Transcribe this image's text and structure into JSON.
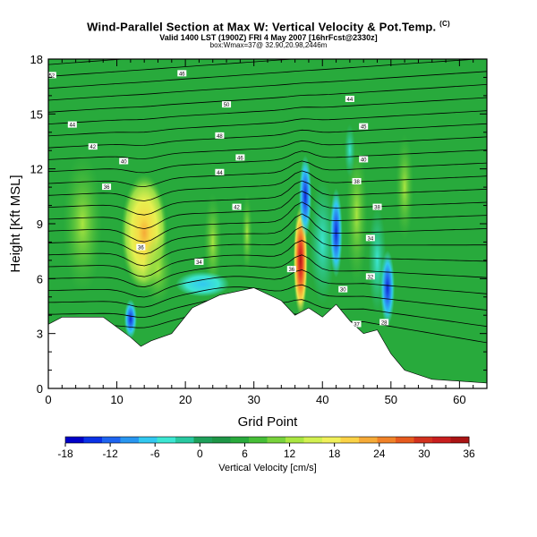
{
  "titles": {
    "main": "Wind-Parallel Section at Max W: Vertical Velocity & Pot.Temp.",
    "main_mark": "(C)",
    "sub1": "Valid 1400 LST (1900Z) FRI 4 May 2007 [16hrFcst@2330z]",
    "sub2": "box:Wmax=37@ 32.90,20.98,2446m"
  },
  "chart_data": {
    "type": "heatmap",
    "xlabel": "Grid Point",
    "ylabel": "Height [Kft MSL]",
    "xlim": [
      0,
      64
    ],
    "ylim": [
      0,
      18
    ],
    "x_ticks": [
      0,
      10,
      20,
      30,
      40,
      50,
      60
    ],
    "y_ticks": [
      0,
      3,
      6,
      9,
      12,
      15,
      18
    ],
    "colorbar": {
      "title": "Vertical Velocity [cm/s]",
      "min": -18,
      "max": 36,
      "tick_values": [
        -18,
        -12,
        -6,
        0,
        6,
        12,
        18,
        24,
        30,
        36
      ],
      "colors": [
        "#0000c8",
        "#0a32e6",
        "#1e64f0",
        "#2896f0",
        "#32c8f0",
        "#3ce6d2",
        "#28c8a0",
        "#1ea05a",
        "#1e9646",
        "#28aa3c",
        "#46be37",
        "#78d23c",
        "#aae641",
        "#d2f050",
        "#f0f05a",
        "#fad246",
        "#f5aa37",
        "#f08228",
        "#e65a1e",
        "#d2321e",
        "#c81e1e",
        "#aa1414"
      ]
    },
    "features": [
      {
        "kind": "updraft",
        "x": 14,
        "y": 8.5,
        "value": 14
      },
      {
        "kind": "updraft",
        "x": 36.8,
        "y": 7.0,
        "value": 36
      },
      {
        "kind": "downdraft",
        "x": 37.5,
        "y": 10.5,
        "value": -12
      },
      {
        "kind": "downdraft",
        "x": 42,
        "y": 8.5,
        "value": -10
      },
      {
        "kind": "downdraft",
        "x": 49.5,
        "y": 5.5,
        "value": -14
      },
      {
        "kind": "downdraft",
        "x": 22,
        "y": 5.5,
        "value": -6
      }
    ],
    "terrain_height": [
      {
        "x": 0,
        "y": 3.5
      },
      {
        "x": 2,
        "y": 3.9
      },
      {
        "x": 8,
        "y": 3.9
      },
      {
        "x": 12,
        "y": 2.8
      },
      {
        "x": 13.5,
        "y": 2.3
      },
      {
        "x": 15,
        "y": 2.6
      },
      {
        "x": 18,
        "y": 3.0
      },
      {
        "x": 21,
        "y": 4.4
      },
      {
        "x": 25,
        "y": 5.1
      },
      {
        "x": 30,
        "y": 5.5
      },
      {
        "x": 34,
        "y": 4.8
      },
      {
        "x": 36,
        "y": 4.0
      },
      {
        "x": 38,
        "y": 4.4
      },
      {
        "x": 40,
        "y": 3.9
      },
      {
        "x": 42,
        "y": 4.6
      },
      {
        "x": 44,
        "y": 3.7
      },
      {
        "x": 46,
        "y": 3.0
      },
      {
        "x": 48,
        "y": 3.2
      },
      {
        "x": 50,
        "y": 1.9
      },
      {
        "x": 52,
        "y": 1.0
      },
      {
        "x": 56,
        "y": 0.5
      },
      {
        "x": 60,
        "y": 0.4
      },
      {
        "x": 64,
        "y": 0.3
      }
    ],
    "theta_labels": [
      {
        "x": 0.5,
        "y": 17.1,
        "text": "52"
      },
      {
        "x": 19.5,
        "y": 17.2,
        "text": "46"
      },
      {
        "x": 3.5,
        "y": 14.4,
        "text": "44"
      },
      {
        "x": 26,
        "y": 15.5,
        "text": "50"
      },
      {
        "x": 6.5,
        "y": 13.2,
        "text": "42"
      },
      {
        "x": 25,
        "y": 13.8,
        "text": "48"
      },
      {
        "x": 11,
        "y": 12.4,
        "text": "40"
      },
      {
        "x": 28,
        "y": 12.6,
        "text": "46"
      },
      {
        "x": 8.5,
        "y": 11.0,
        "text": "36"
      },
      {
        "x": 25,
        "y": 11.8,
        "text": "44"
      },
      {
        "x": 27.5,
        "y": 9.9,
        "text": "42"
      },
      {
        "x": 13.5,
        "y": 7.7,
        "text": "36"
      },
      {
        "x": 22,
        "y": 6.9,
        "text": "34"
      },
      {
        "x": 35.5,
        "y": 6.5,
        "text": "36"
      },
      {
        "x": 44,
        "y": 15.8,
        "text": "44"
      },
      {
        "x": 46,
        "y": 14.3,
        "text": "45"
      },
      {
        "x": 46,
        "y": 12.5,
        "text": "40"
      },
      {
        "x": 45,
        "y": 11.3,
        "text": "38"
      },
      {
        "x": 48,
        "y": 9.9,
        "text": "38"
      },
      {
        "x": 47,
        "y": 8.2,
        "text": "34"
      },
      {
        "x": 47,
        "y": 6.1,
        "text": "32"
      },
      {
        "x": 43,
        "y": 5.4,
        "text": "30"
      },
      {
        "x": 45,
        "y": 3.5,
        "text": "37"
      },
      {
        "x": 49,
        "y": 3.6,
        "text": "28"
      }
    ]
  }
}
